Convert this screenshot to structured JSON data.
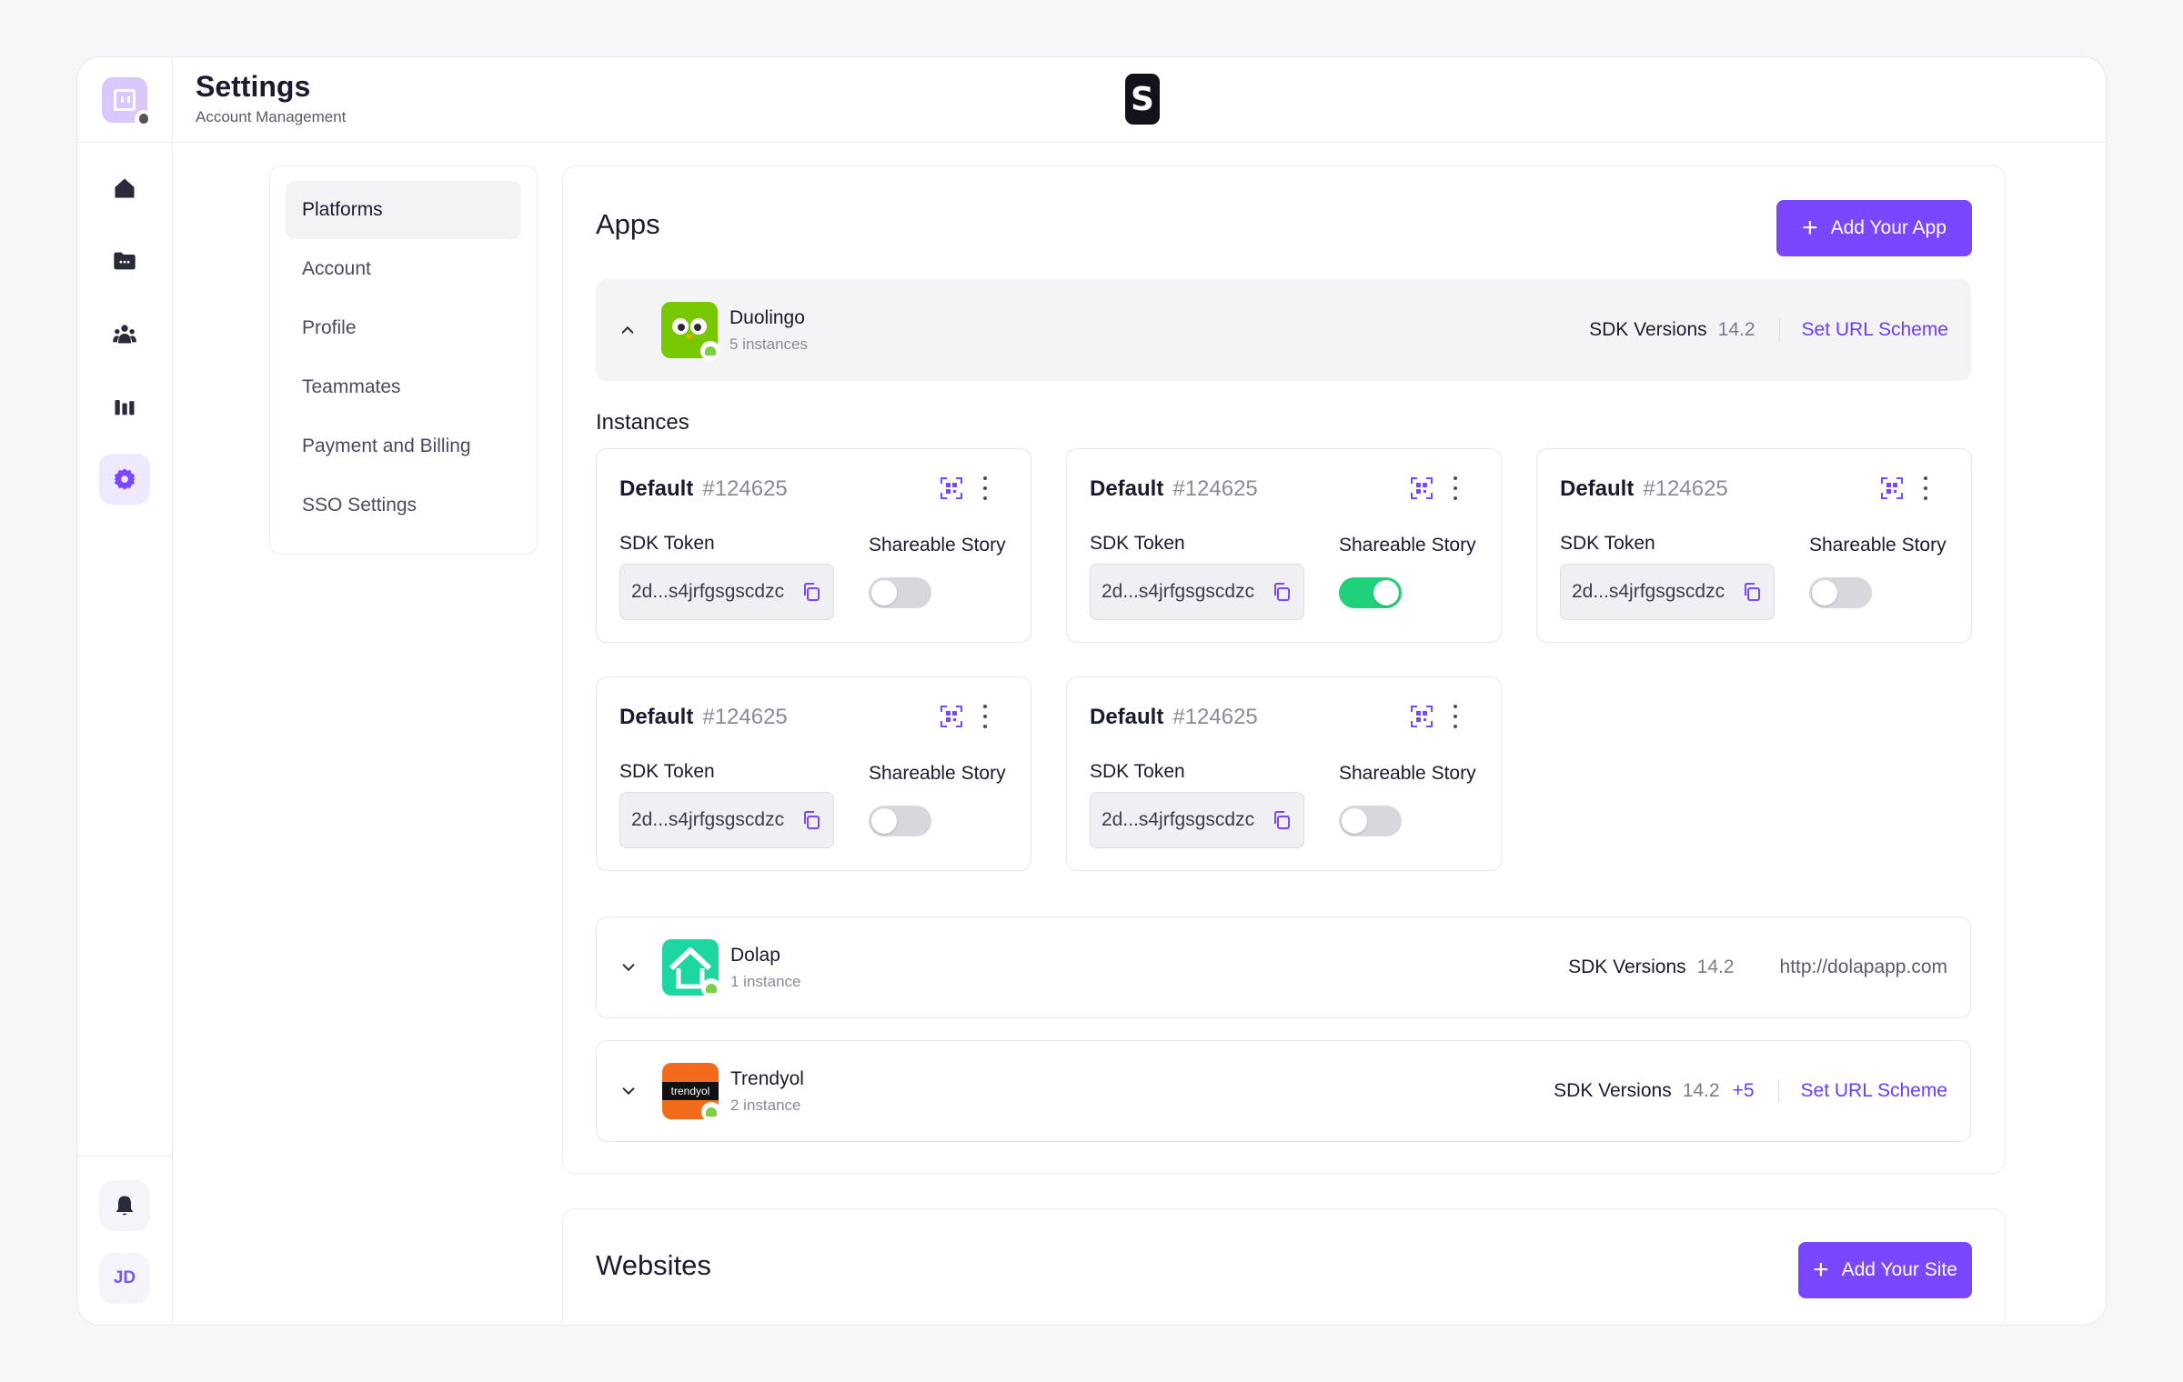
{
  "header": {
    "title": "Settings",
    "subtitle": "Account Management",
    "logo_letter": "S"
  },
  "sidebar": {
    "nav": [
      {
        "icon": "home-icon"
      },
      {
        "icon": "folder-icon"
      },
      {
        "icon": "team-icon"
      },
      {
        "icon": "analytics-icon"
      },
      {
        "icon": "settings-icon",
        "active": true
      }
    ],
    "user_initials": "JD"
  },
  "menu": {
    "items": [
      "Platforms",
      "Account",
      "Profile",
      "Teammates",
      "Payment and Billing",
      "SSO Settings"
    ],
    "active": "Platforms"
  },
  "apps": {
    "title": "Apps",
    "add_label": "Add Your App",
    "instances_title": "Instances",
    "list": [
      {
        "name": "Duolingo",
        "count": "5 instances",
        "sdk_label": "SDK Versions",
        "sdk": "14.2",
        "action": "Set URL Scheme",
        "expanded": true
      },
      {
        "name": "Dolap",
        "count": "1 instance",
        "sdk_label": "SDK Versions",
        "sdk": "14.2",
        "url": "http://dolapapp.com"
      },
      {
        "name": "Trendyol",
        "count": "2 instance",
        "sdk_label": "SDK Versions",
        "sdk": "14.2",
        "more": "+5",
        "action": "Set URL Scheme",
        "icon_text": "trendyol"
      }
    ],
    "instances": [
      {
        "name": "Default",
        "id": "#124625",
        "token_label": "SDK Token",
        "token": "2d...s4jrfgsgscdzc",
        "share_label": "Shareable Story",
        "shareable": false
      },
      {
        "name": "Default",
        "id": "#124625",
        "token_label": "SDK Token",
        "token": "2d...s4jrfgsgscdzc",
        "share_label": "Shareable Story",
        "shareable": true
      },
      {
        "name": "Default",
        "id": "#124625",
        "token_label": "SDK Token",
        "token": "2d...s4jrfgsgscdzc",
        "share_label": "Shareable Story",
        "shareable": false
      },
      {
        "name": "Default",
        "id": "#124625",
        "token_label": "SDK Token",
        "token": "2d...s4jrfgsgscdzc",
        "share_label": "Shareable Story",
        "shareable": false
      },
      {
        "name": "Default",
        "id": "#124625",
        "token_label": "SDK Token",
        "token": "2d...s4jrfgsgscdzc",
        "share_label": "Shareable Story",
        "shareable": false
      }
    ]
  },
  "websites": {
    "title": "Websites",
    "add_label": "Add Your Site"
  },
  "colors": {
    "accent": "#7a46ff",
    "toggle_on": "#1fd17a",
    "link": "#6a3cff"
  }
}
